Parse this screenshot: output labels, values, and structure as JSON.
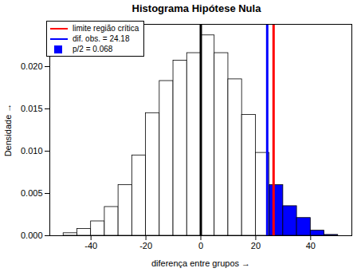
{
  "chart_data": {
    "type": "histogram",
    "title": "Histograma Hipótese Nula",
    "x_label": "diferença entre grupos",
    "y_label": "Densidade",
    "bins": [
      -50,
      -45,
      -40,
      -35,
      -30,
      -25,
      -20,
      -15,
      -10,
      -5,
      0,
      5,
      10,
      15,
      20,
      25,
      30,
      35,
      40,
      45,
      50
    ],
    "values": [
      0.0003,
      0.0008,
      0.0017,
      0.0034,
      0.006,
      0.0095,
      0.0145,
      0.0183,
      0.0207,
      0.0216,
      0.0237,
      0.0216,
      0.0185,
      0.0143,
      0.0098,
      0.006,
      0.0035,
      0.0021,
      0.0006,
      0.0001
    ],
    "colors": [
      "white",
      "white",
      "white",
      "white",
      "white",
      "white",
      "white",
      "white",
      "white",
      "white",
      "white",
      "white",
      "white",
      "white",
      "white",
      "blue",
      "blue",
      "blue",
      "blue",
      "blue"
    ],
    "xlim": [
      -55,
      55
    ],
    "xticks": [
      -40,
      -20,
      0,
      20,
      40
    ],
    "ylim": [
      0,
      0.025
    ],
    "yticks": [
      {
        "value": 0,
        "label": "0.000"
      },
      {
        "value": 0.005,
        "label": "0.005"
      },
      {
        "value": 0.01,
        "label": "0.010"
      },
      {
        "value": 0.015,
        "label": "0.015"
      },
      {
        "value": 0.02,
        "label": "0.020"
      }
    ],
    "reference_lines": [
      {
        "value": 0,
        "color": "black"
      },
      {
        "value": 26.5,
        "color": "red",
        "name": "limite região crítica"
      },
      {
        "value": 24.18,
        "color": "blue",
        "name": "dif. obs. =  24.18"
      }
    ],
    "shaded_area": {
      "name": "p/2 =  0.068",
      "value": 0.068,
      "color": "blue"
    },
    "legend": "top-left",
    "grid": false
  }
}
